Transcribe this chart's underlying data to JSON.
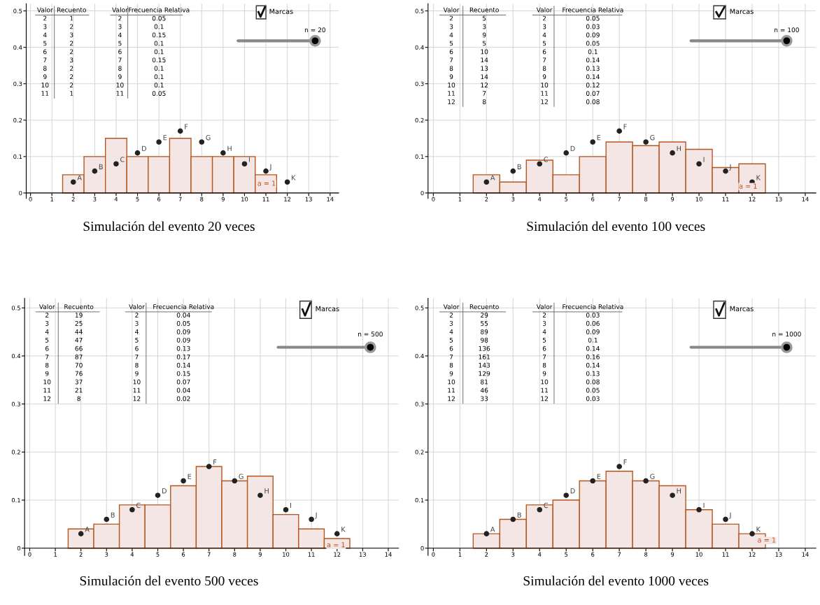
{
  "chart_data": [
    {
      "type": "histogram",
      "title": "Simulación del evento 20 veces",
      "bins": [
        1.5,
        2.5,
        3.5,
        4.5,
        5.5,
        6.5,
        7.5,
        8.5,
        9.5,
        10.5,
        11.5
      ],
      "values": [
        0.05,
        0.1,
        0.15,
        0.1,
        0.1,
        0.15,
        0.1,
        0.1,
        0.1,
        0.05
      ],
      "color": "#f3e6e4",
      "xlim": [
        -0.2,
        14.4
      ],
      "ylim": [
        -0.015,
        0.52
      ],
      "xticks": [
        0,
        1,
        2,
        3,
        4,
        5,
        6,
        7,
        8,
        9,
        10,
        11,
        12,
        13,
        14
      ],
      "yticks": [
        0,
        0.1,
        0.2,
        0.3,
        0.4,
        0.5
      ],
      "grid": true,
      "marker": "circle",
      "series": [
        {
          "type": "scatter",
          "x": [
            2,
            3,
            4,
            5,
            6,
            7,
            8,
            9,
            10,
            11,
            12
          ],
          "values": [
            0.03,
            0.06,
            0.08,
            0.11,
            0.14,
            0.17,
            0.14,
            0.11,
            0.08,
            0.06,
            0.03
          ],
          "color": "#222222",
          "value_labels": [
            "A",
            "B",
            "C",
            "D",
            "E",
            "F",
            "G",
            "H",
            "I",
            "J",
            "K"
          ]
        }
      ],
      "annotations": [
        "Valor",
        "Recuento",
        "Valor",
        "Frecuencia Relativa",
        "2",
        "1",
        "2",
        "0.05",
        "3",
        "2",
        "3",
        "0.1",
        "4",
        "3",
        "4",
        "0.15",
        "5",
        "2",
        "5",
        "0.1",
        "6",
        "2",
        "6",
        "0.1",
        "7",
        "3",
        "7",
        "0.15",
        "8",
        "2",
        "8",
        "0.1",
        "9",
        "2",
        "9",
        "0.1",
        "10",
        "2",
        "10",
        "0.1",
        "11",
        "1",
        "11",
        "0.05",
        "Marcas",
        "n = 20",
        "a = 1"
      ]
    },
    {
      "type": "histogram",
      "title": "Simulación del evento 100 veces",
      "bins": [
        1.5,
        2.5,
        3.5,
        4.5,
        5.5,
        6.5,
        7.5,
        8.5,
        9.5,
        10.5,
        11.5,
        12.5
      ],
      "values": [
        0.05,
        0.03,
        0.09,
        0.05,
        0.1,
        0.14,
        0.13,
        0.14,
        0.12,
        0.07,
        0.08
      ],
      "color": "#f3e6e4",
      "xlim": [
        -0.2,
        14.4
      ],
      "ylim": [
        -0.015,
        0.52
      ],
      "xticks": [
        0,
        1,
        2,
        3,
        4,
        5,
        6,
        7,
        8,
        9,
        10,
        11,
        12,
        13,
        14
      ],
      "yticks": [
        0,
        0.1,
        0.2,
        0.3,
        0.4,
        0.5
      ],
      "grid": true,
      "marker": "circle",
      "series": [
        {
          "type": "scatter",
          "x": [
            2,
            3,
            4,
            5,
            6,
            7,
            8,
            9,
            10,
            11,
            12
          ],
          "values": [
            0.03,
            0.06,
            0.08,
            0.11,
            0.14,
            0.17,
            0.14,
            0.11,
            0.08,
            0.06,
            0.03
          ],
          "color": "#222222",
          "value_labels": [
            "A",
            "B",
            "C",
            "D",
            "E",
            "F",
            "G",
            "H",
            "I",
            "J",
            "K"
          ]
        }
      ],
      "annotations": [
        "Valor",
        "Recuento",
        "Valor",
        "Frecuencia Relativa",
        "2",
        "5",
        "2",
        "0.05",
        "3",
        "3",
        "3",
        "0.03",
        "4",
        "9",
        "4",
        "0.09",
        "5",
        "5",
        "5",
        "0.05",
        "6",
        "10",
        "6",
        "0.1",
        "7",
        "14",
        "7",
        "0.14",
        "8",
        "13",
        "8",
        "0.13",
        "9",
        "14",
        "9",
        "0.14",
        "10",
        "12",
        "10",
        "0.12",
        "11",
        "7",
        "11",
        "0.07",
        "12",
        "8",
        "12",
        "0.08",
        "Marcas",
        "n = 100",
        "a = 1"
      ]
    },
    {
      "type": "histogram",
      "title": "Simulación del evento 500 veces",
      "bins": [
        1.5,
        2.5,
        3.5,
        4.5,
        5.5,
        6.5,
        7.5,
        8.5,
        9.5,
        10.5,
        11.5,
        12.5
      ],
      "values": [
        0.04,
        0.05,
        0.09,
        0.09,
        0.13,
        0.17,
        0.14,
        0.15,
        0.07,
        0.04,
        0.02
      ],
      "color": "#f3e6e4",
      "xlim": [
        -0.2,
        14.4
      ],
      "ylim": [
        -0.015,
        0.52
      ],
      "xticks": [
        0,
        1,
        2,
        3,
        4,
        5,
        6,
        7,
        8,
        9,
        10,
        11,
        12,
        13,
        14
      ],
      "yticks": [
        0,
        0.1,
        0.2,
        0.3,
        0.4,
        0.5
      ],
      "grid": true,
      "marker": "circle",
      "series": [
        {
          "type": "scatter",
          "x": [
            2,
            3,
            4,
            5,
            6,
            7,
            8,
            9,
            10,
            11,
            12
          ],
          "values": [
            0.03,
            0.06,
            0.08,
            0.11,
            0.14,
            0.17,
            0.14,
            0.11,
            0.08,
            0.06,
            0.03
          ],
          "color": "#222222",
          "value_labels": [
            "A",
            "B",
            "C",
            "D",
            "E",
            "F",
            "G",
            "H",
            "I",
            "J",
            "K"
          ]
        }
      ],
      "annotations": [
        "Valor",
        "Recuento",
        "Valor",
        "Frecuencia Relativa",
        "2",
        "19",
        "2",
        "0.04",
        "3",
        "25",
        "3",
        "0.05",
        "4",
        "44",
        "4",
        "0.09",
        "5",
        "47",
        "5",
        "0.09",
        "6",
        "66",
        "6",
        "0.13",
        "7",
        "87",
        "7",
        "0.17",
        "8",
        "70",
        "8",
        "0.14",
        "9",
        "76",
        "9",
        "0.15",
        "10",
        "37",
        "10",
        "0.07",
        "11",
        "21",
        "11",
        "0.04",
        "12",
        "8",
        "12",
        "0.02",
        "Marcas",
        "n = 500",
        "a = 1"
      ]
    },
    {
      "type": "histogram",
      "title": "Simulación del evento 1000 veces",
      "bins": [
        1.5,
        2.5,
        3.5,
        4.5,
        5.5,
        6.5,
        7.5,
        8.5,
        9.5,
        10.5,
        11.5,
        12.5
      ],
      "values": [
        0.03,
        0.06,
        0.09,
        0.1,
        0.14,
        0.16,
        0.14,
        0.13,
        0.08,
        0.05,
        0.03
      ],
      "color": "#f3e6e4",
      "xlim": [
        -0.2,
        14.4
      ],
      "ylim": [
        -0.015,
        0.52
      ],
      "xticks": [
        0,
        1,
        2,
        3,
        4,
        5,
        6,
        7,
        8,
        9,
        10,
        11,
        12,
        13,
        14
      ],
      "yticks": [
        0,
        0.1,
        0.2,
        0.3,
        0.4,
        0.5
      ],
      "grid": true,
      "marker": "circle",
      "series": [
        {
          "type": "scatter",
          "x": [
            2,
            3,
            4,
            5,
            6,
            7,
            8,
            9,
            10,
            11,
            12
          ],
          "values": [
            0.03,
            0.06,
            0.08,
            0.11,
            0.14,
            0.17,
            0.14,
            0.11,
            0.08,
            0.06,
            0.03
          ],
          "color": "#222222",
          "value_labels": [
            "A",
            "B",
            "C",
            "D",
            "E",
            "F",
            "G",
            "H",
            "I",
            "J",
            "K"
          ]
        }
      ],
      "annotations": [
        "Valor",
        "Recuento",
        "Valor",
        "Frecuencia Relativa",
        "2",
        "29",
        "2",
        "0.03",
        "3",
        "55",
        "3",
        "0.06",
        "4",
        "89",
        "4",
        "0.09",
        "5",
        "98",
        "5",
        "0.1",
        "6",
        "136",
        "6",
        "0.14",
        "7",
        "161",
        "7",
        "0.16",
        "8",
        "143",
        "8",
        "0.14",
        "9",
        "129",
        "9",
        "0.13",
        "10",
        "81",
        "10",
        "0.08",
        "11",
        "46",
        "11",
        "0.05",
        "12",
        "33",
        "12",
        "0.03",
        "Marcas",
        "n = 1000",
        "a = 1"
      ]
    }
  ]
}
